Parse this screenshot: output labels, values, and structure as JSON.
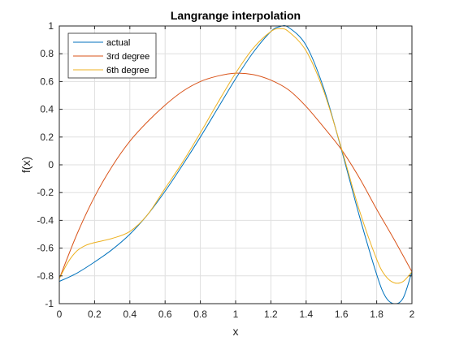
{
  "chart_data": {
    "type": "line",
    "title": "Langrange interpolation",
    "xlabel": "x",
    "ylabel": "f(x)",
    "xlim": [
      0,
      2
    ],
    "ylim": [
      -1,
      1
    ],
    "xticks": [
      0,
      0.2,
      0.4,
      0.6,
      0.8,
      1,
      1.2,
      1.4,
      1.6,
      1.8,
      2
    ],
    "xtick_labels": [
      "0",
      "0.2",
      "0.4",
      "0.6",
      "0.8",
      "1",
      "1.2",
      "1.4",
      "1.6",
      "1.8",
      "2"
    ],
    "yticks": [
      -1,
      -0.8,
      -0.6,
      -0.4,
      -0.2,
      0,
      0.2,
      0.4,
      0.6,
      0.8,
      1
    ],
    "ytick_labels": [
      "-1",
      "-0.8",
      "-0.6",
      "-0.4",
      "-0.2",
      "0",
      "0.2",
      "0.4",
      "0.6",
      "0.8",
      "1"
    ],
    "grid": true,
    "legend_position": "top-left",
    "series": [
      {
        "name": "actual",
        "color": "#0072BD",
        "x": [
          0,
          0.1,
          0.2,
          0.3,
          0.4,
          0.5,
          0.6,
          0.7,
          0.8,
          0.9,
          1.0,
          1.1,
          1.2,
          1.25,
          1.3,
          1.4,
          1.5,
          1.6,
          1.7,
          1.8,
          1.85,
          1.9,
          1.95,
          2.0
        ],
        "y": [
          -0.84,
          -0.78,
          -0.7,
          -0.61,
          -0.5,
          -0.36,
          -0.19,
          0.0,
          0.2,
          0.41,
          0.62,
          0.81,
          0.96,
          0.995,
          0.99,
          0.86,
          0.55,
          0.11,
          -0.36,
          -0.79,
          -0.95,
          -1.0,
          -0.96,
          -0.77
        ]
      },
      {
        "name": "3rd degree",
        "color": "#D95319",
        "x": [
          0,
          0.1,
          0.2,
          0.3,
          0.4,
          0.5,
          0.6,
          0.7,
          0.8,
          0.9,
          1.0,
          1.1,
          1.2,
          1.3,
          1.4,
          1.5,
          1.6,
          1.7,
          1.8,
          1.9,
          2.0
        ],
        "y": [
          -0.82,
          -0.5,
          -0.23,
          -0.01,
          0.17,
          0.31,
          0.43,
          0.53,
          0.6,
          0.64,
          0.66,
          0.65,
          0.61,
          0.54,
          0.42,
          0.27,
          0.11,
          -0.09,
          -0.32,
          -0.54,
          -0.77
        ]
      },
      {
        "name": "6th degree",
        "color": "#EDB120",
        "x": [
          0,
          0.05,
          0.1,
          0.15,
          0.2,
          0.3,
          0.4,
          0.5,
          0.6,
          0.7,
          0.8,
          0.9,
          1.0,
          1.1,
          1.2,
          1.25,
          1.3,
          1.4,
          1.5,
          1.6,
          1.7,
          1.8,
          1.85,
          1.9,
          1.95,
          2.0
        ],
        "y": [
          -0.82,
          -0.7,
          -0.62,
          -0.58,
          -0.56,
          -0.53,
          -0.48,
          -0.36,
          -0.17,
          0.02,
          0.23,
          0.45,
          0.66,
          0.84,
          0.96,
          0.98,
          0.96,
          0.82,
          0.53,
          0.12,
          -0.32,
          -0.68,
          -0.8,
          -0.85,
          -0.84,
          -0.77
        ]
      }
    ]
  }
}
